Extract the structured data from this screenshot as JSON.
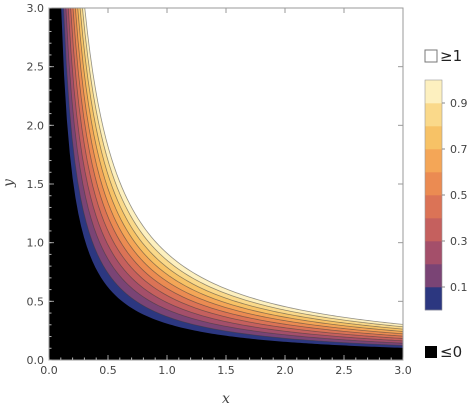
{
  "chart_data": {
    "type": "contour",
    "xlabel": "x",
    "ylabel": "y",
    "xlim": [
      0,
      3
    ],
    "ylim": [
      0,
      3
    ],
    "x_ticks": [
      "0.0",
      "0.5",
      "1.0",
      "1.5",
      "2.0",
      "2.5",
      "3.0"
    ],
    "y_ticks": [
      "0.0",
      "0.5",
      "1.0",
      "1.5",
      "2.0",
      "2.5",
      "3.0"
    ],
    "x_tick_values": [
      0,
      0.5,
      1,
      1.5,
      2,
      2.5,
      3
    ],
    "y_tick_values": [
      0,
      0.5,
      1,
      1.5,
      2,
      2.5,
      3
    ],
    "contour_levels": [
      0,
      0.1,
      0.2,
      0.3,
      0.4,
      0.5,
      0.6,
      0.7,
      0.8,
      0.9,
      1
    ],
    "band_colors": [
      "#2c3780",
      "#7a4475",
      "#a44f6a",
      "#c5605e",
      "#db7356",
      "#eb8b52",
      "#f4a657",
      "#f7c266",
      "#fad98a",
      "#fdf0bf"
    ],
    "below_color": "#000000",
    "above_color": "#ffffff",
    "field_description": "value ≈ (x·y − 0.31)/0.6, clipped at 0 and 1",
    "legend": {
      "position": "right",
      "top_label": "≥1",
      "bottom_label": "≤0",
      "tick_labels": [
        "0.1",
        "0.3",
        "0.5",
        "0.7",
        "0.9"
      ],
      "tick_values": [
        0.1,
        0.3,
        0.5,
        0.7,
        0.9
      ]
    },
    "grid": false
  }
}
